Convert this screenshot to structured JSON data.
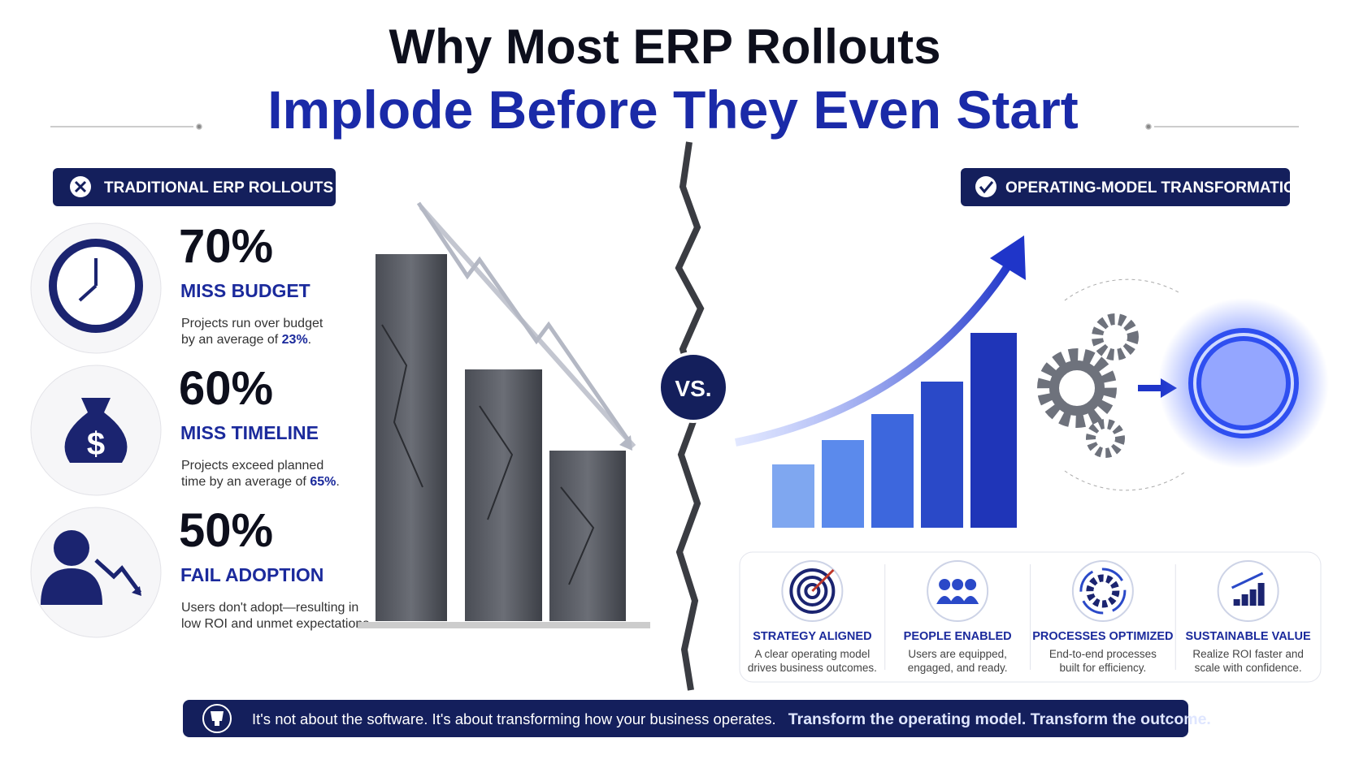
{
  "header": {
    "title_line1": "Why Most ERP Rollouts",
    "title_line2": "Implode Before They Even Start"
  },
  "left": {
    "badge": "TRADITIONAL ERP ROLLOUTS",
    "stats": [
      {
        "value": "70%",
        "label": "MISS BUDGET",
        "desc_line1": "Projects run over budget",
        "desc_line2": "by an average of ",
        "desc_highlight": "23%",
        "desc_end": "."
      },
      {
        "value": "60%",
        "label": "MISS TIMELINE",
        "desc_line1": "Projects exceed planned",
        "desc_line2": "time by an average of ",
        "desc_highlight": "65%",
        "desc_end": "."
      },
      {
        "value": "50%",
        "label": "FAIL ADOPTION",
        "desc_line1": "Users don't adopt—resulting in",
        "desc_line2": "low ROI and unmet expectations."
      }
    ]
  },
  "center": {
    "vs": "VS."
  },
  "right": {
    "badge": "OPERATING-MODEL TRANSFORMATION",
    "pillars": [
      {
        "title": "STRATEGY ALIGNED",
        "desc_line1": "A clear operating model",
        "desc_line2": "drives business outcomes."
      },
      {
        "title": "PEOPLE ENABLED",
        "desc_line1": "Users are equipped,",
        "desc_line2": "engaged, and ready."
      },
      {
        "title": "PROCESSES OPTIMIZED",
        "desc_line1": "End-to-end processes",
        "desc_line2": "built for efficiency."
      },
      {
        "title": "SUSTAINABLE VALUE",
        "desc_line1": "Realize ROI faster and",
        "desc_line2": "scale with confidence."
      }
    ]
  },
  "footer": {
    "text": "It's not about the software. It's about transforming how your business operates.",
    "emphasis": "Transform the operating model. Transform the outcome."
  }
}
